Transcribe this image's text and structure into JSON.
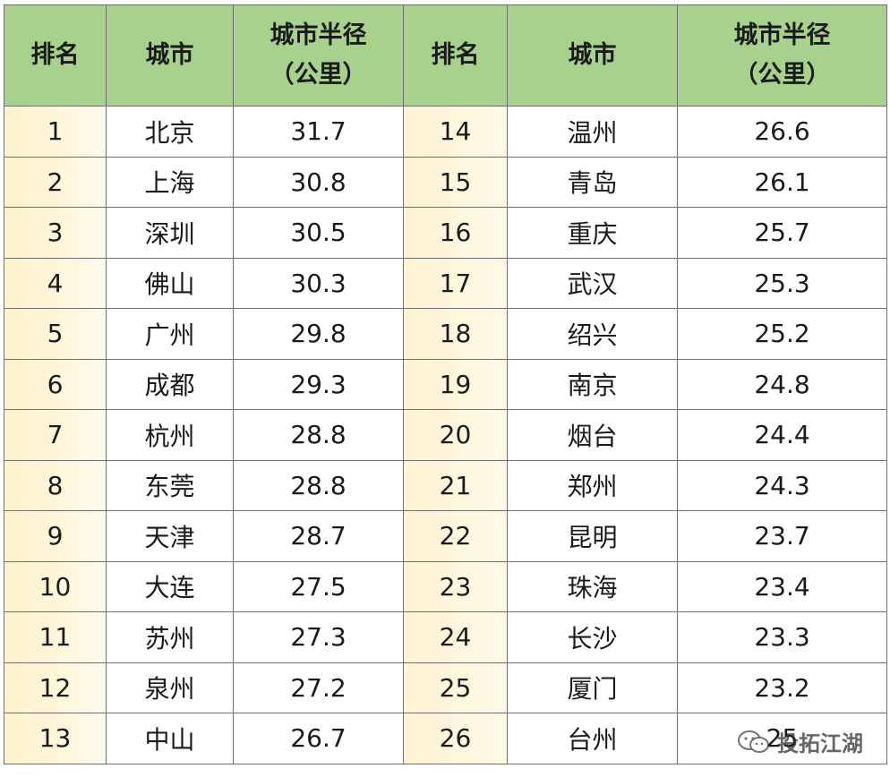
{
  "headers": {
    "rank": "排名",
    "city": "城市",
    "radius_line1": "城市半径",
    "radius_line2": "（公里）"
  },
  "rows": [
    {
      "left": {
        "rank": "1",
        "city": "北京",
        "radius": "31.7"
      },
      "right": {
        "rank": "14",
        "city": "温州",
        "radius": "26.6"
      }
    },
    {
      "left": {
        "rank": "2",
        "city": "上海",
        "radius": "30.8"
      },
      "right": {
        "rank": "15",
        "city": "青岛",
        "radius": "26.1"
      }
    },
    {
      "left": {
        "rank": "3",
        "city": "深圳",
        "radius": "30.5"
      },
      "right": {
        "rank": "16",
        "city": "重庆",
        "radius": "25.7"
      }
    },
    {
      "left": {
        "rank": "4",
        "city": "佛山",
        "radius": "30.3"
      },
      "right": {
        "rank": "17",
        "city": "武汉",
        "radius": "25.3"
      }
    },
    {
      "left": {
        "rank": "5",
        "city": "广州",
        "radius": "29.8"
      },
      "right": {
        "rank": "18",
        "city": "绍兴",
        "radius": "25.2"
      }
    },
    {
      "left": {
        "rank": "6",
        "city": "成都",
        "radius": "29.3"
      },
      "right": {
        "rank": "19",
        "city": "南京",
        "radius": "24.8"
      }
    },
    {
      "left": {
        "rank": "7",
        "city": "杭州",
        "radius": "28.8"
      },
      "right": {
        "rank": "20",
        "city": "烟台",
        "radius": "24.4"
      }
    },
    {
      "left": {
        "rank": "8",
        "city": "东莞",
        "radius": "28.8"
      },
      "right": {
        "rank": "21",
        "city": "郑州",
        "radius": "24.3"
      }
    },
    {
      "left": {
        "rank": "9",
        "city": "天津",
        "radius": "28.7"
      },
      "right": {
        "rank": "22",
        "city": "昆明",
        "radius": "23.7"
      }
    },
    {
      "left": {
        "rank": "10",
        "city": "大连",
        "radius": "27.5"
      },
      "right": {
        "rank": "23",
        "city": "珠海",
        "radius": "23.4"
      }
    },
    {
      "left": {
        "rank": "11",
        "city": "苏州",
        "radius": "27.3"
      },
      "right": {
        "rank": "24",
        "city": "长沙",
        "radius": "23.3"
      }
    },
    {
      "left": {
        "rank": "12",
        "city": "泉州",
        "radius": "27.2"
      },
      "right": {
        "rank": "25",
        "city": "厦门",
        "radius": "23.2"
      }
    },
    {
      "left": {
        "rank": "13",
        "city": "中山",
        "radius": "26.7"
      },
      "right": {
        "rank": "26",
        "city": "台州",
        "radius": "25"
      }
    }
  ],
  "watermark": {
    "icon": "wechat-icon",
    "text": "投拓江湖"
  },
  "colors": {
    "header_bg": "#a9d18e",
    "rank_bg": "#fff2cc",
    "border": "#6f6f6f"
  }
}
